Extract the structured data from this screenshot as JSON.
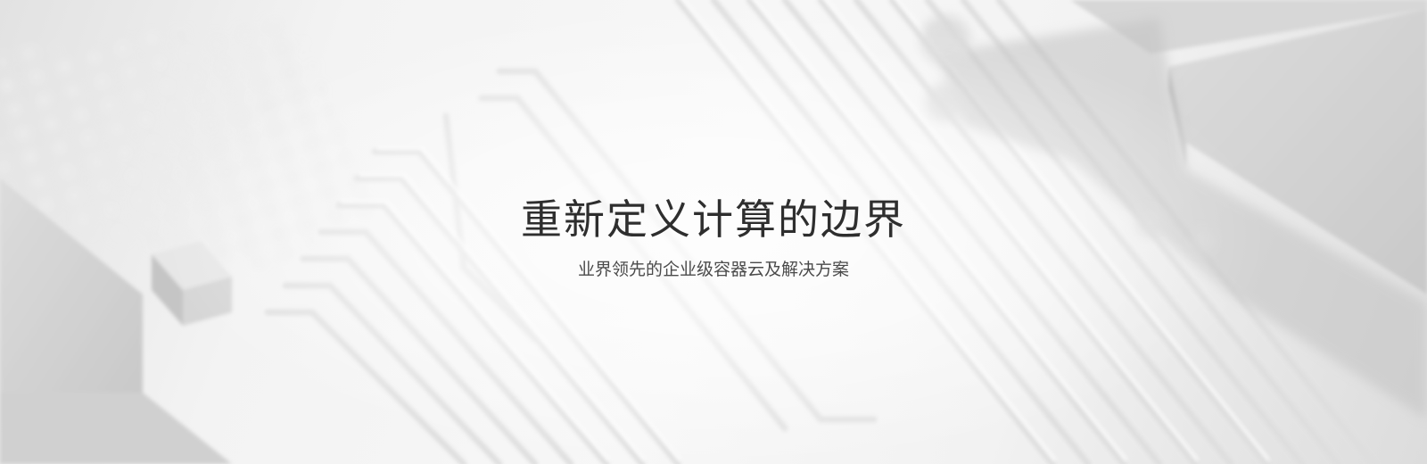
{
  "hero": {
    "title": "重新定义计算的边界",
    "subtitle": "业界领先的企业级容器云及解决方案"
  },
  "background": {
    "description_icon": "circuit-board-image",
    "base_color": "#f1f1f1"
  },
  "colors": {
    "title": "#2e2e2e",
    "subtitle": "#4a4a4a"
  }
}
